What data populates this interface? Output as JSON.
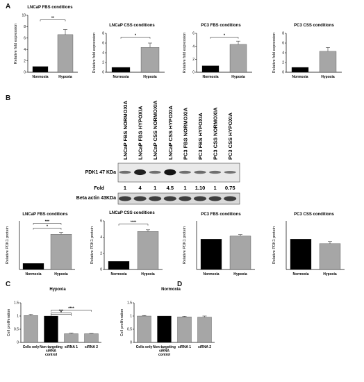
{
  "panels": {
    "a": "A",
    "b": "B",
    "c": "C",
    "d": "D"
  },
  "blot": {
    "lanes": [
      "LNCaP FBS NORMOXIA",
      "LNCaP FBS HYPOXIA",
      "LNCaP CSS NORMOXIA",
      "LNCaP CSS HYPOXIA",
      "PC3 FBS NORMOXIA",
      "PC3 FBS HYPOXIA",
      "PC3 CSS NORMOXIA",
      "PC3 CSS HYPOXIA"
    ],
    "pdk1_label": "PDK1 47 KDa",
    "fold_label": "Fold",
    "fold_values": [
      "1",
      "4",
      "1",
      "4.5",
      "1",
      "1.10",
      "1",
      "0.75"
    ],
    "beta_label": "Beta actin 43KDa"
  },
  "chart_data": [
    {
      "id": "A1",
      "type": "bar",
      "title": "LNCaP FBS conditions",
      "ylabel": "Relative fold expression",
      "categories": [
        "Normoxia",
        "Hypoxia"
      ],
      "values": [
        1.0,
        6.6
      ],
      "errors": [
        0,
        0.9
      ],
      "ylim": [
        0,
        10
      ],
      "yticks": [
        0,
        2,
        4,
        6,
        8,
        10
      ],
      "colors": [
        "#000000",
        "#a6a6a6"
      ],
      "significance": [
        {
          "label": "**",
          "from": 0,
          "to": 1,
          "level": 9.2
        }
      ]
    },
    {
      "id": "A2",
      "type": "bar",
      "title": "LNCaP CSS conditions",
      "ylabel": "Relative fold expression",
      "categories": [
        "Normoxia",
        "Hypoxia"
      ],
      "values": [
        1.0,
        5.1
      ],
      "errors": [
        0,
        0.9
      ],
      "ylim": [
        0,
        8
      ],
      "yticks": [
        0,
        2,
        4,
        6,
        8
      ],
      "colors": [
        "#000000",
        "#a6a6a6"
      ],
      "significance": [
        {
          "label": "*",
          "from": 0,
          "to": 1,
          "level": 7.2
        }
      ]
    },
    {
      "id": "A3",
      "type": "bar",
      "title": "PC3 FBS conditions",
      "ylabel": "Relative fold expression",
      "categories": [
        "Normoxia",
        "Hypoxia"
      ],
      "values": [
        1.0,
        4.3
      ],
      "errors": [
        0,
        0.5
      ],
      "ylim": [
        0,
        6
      ],
      "yticks": [
        0,
        2,
        4,
        6
      ],
      "colors": [
        "#000000",
        "#a6a6a6"
      ],
      "significance": [
        {
          "label": "*",
          "from": 0,
          "to": 1,
          "level": 5.4
        }
      ]
    },
    {
      "id": "A4",
      "type": "bar",
      "title": "PC3 CSS conditions",
      "ylabel": "Relative fold expression",
      "categories": [
        "Normoxia",
        "Hypoxia"
      ],
      "values": [
        1.0,
        4.3
      ],
      "errors": [
        0,
        0.8
      ],
      "ylim": [
        0,
        8
      ],
      "yticks": [
        0,
        2,
        4,
        6,
        8
      ],
      "colors": [
        "#000000",
        "#a6a6a6"
      ],
      "significance": []
    },
    {
      "id": "B1",
      "type": "bar",
      "title": "LNCaP FBS conditions",
      "ylabel": "Relative PDK1 protein",
      "categories": [
        "Normoxia",
        "Hypoxia"
      ],
      "values": [
        1.0,
        5.8
      ],
      "errors": [
        0,
        0.3
      ],
      "ylim": [
        0,
        8
      ],
      "yticks": [],
      "colors": [
        "#000000",
        "#a6a6a6"
      ],
      "significance": [
        {
          "label": "***",
          "from": 0,
          "to": 1,
          "level": 7.6
        },
        {
          "label": "*",
          "from": 0,
          "to": 1,
          "level": 6.8
        }
      ]
    },
    {
      "id": "B2",
      "type": "bar",
      "title": "LNCaP CSS conditions",
      "ylabel": "Relative PDK1 protein",
      "categories": [
        "Normoxia",
        "Hypoxia"
      ],
      "values": [
        1.0,
        4.7
      ],
      "errors": [
        0,
        0.2
      ],
      "ylim": [
        0,
        6
      ],
      "yticks": [
        0,
        2,
        4,
        6
      ],
      "colors": [
        "#000000",
        "#a6a6a6"
      ],
      "significance": [
        {
          "label": "****",
          "from": 0,
          "to": 1,
          "level": 5.6
        }
      ]
    },
    {
      "id": "B3",
      "type": "bar",
      "title": "PC3 FBS conditions",
      "ylabel": "Relative PDK1 protein",
      "categories": [
        "Normoxia",
        "Hypoxia"
      ],
      "values": [
        1.0,
        1.1
      ],
      "errors": [
        0,
        0.05
      ],
      "ylim": [
        0,
        1.6
      ],
      "yticks": [],
      "colors": [
        "#000000",
        "#a6a6a6"
      ],
      "significance": []
    },
    {
      "id": "B4",
      "type": "bar",
      "title": "PC3 CSS conditions",
      "ylabel": "Relative PDK1 protein",
      "categories": [
        "Normoxia",
        "Hypoxia"
      ],
      "values": [
        1.0,
        0.85
      ],
      "errors": [
        0,
        0.07
      ],
      "ylim": [
        0,
        1.6
      ],
      "yticks": [],
      "colors": [
        "#000000",
        "#a6a6a6"
      ],
      "significance": []
    },
    {
      "id": "C",
      "type": "bar",
      "title": "Hypoxia",
      "ylabel": "Cell proliferation",
      "categories": [
        "Cells only",
        "Non-targeting siRNA control",
        "siRNA 1",
        "siRNA 2"
      ],
      "values": [
        1.02,
        1.0,
        0.33,
        0.33
      ],
      "errors": [
        0.05,
        0,
        0.02,
        0.01
      ],
      "ylim": [
        0,
        1.5
      ],
      "yticks": [
        0,
        0.5,
        1.0,
        1.5
      ],
      "colors": [
        "#a6a6a6",
        "#000000",
        "#a6a6a6",
        "#a6a6a6"
      ],
      "significance": [
        {
          "label": "****",
          "from": 1,
          "to": 3,
          "level": 1.22
        },
        {
          "label": "***",
          "from": 1,
          "to": 2,
          "level": 1.12
        },
        {
          "label": "*",
          "from": 1,
          "to": 2,
          "level": 1.06
        }
      ]
    },
    {
      "id": "D",
      "type": "bar",
      "title": "Normoxia",
      "ylabel": "Cell proliferation",
      "categories": [
        "Cells only",
        "Non-targeting siRNA control",
        "siRNA 1",
        "siRNA 2"
      ],
      "values": [
        1.0,
        1.0,
        0.97,
        0.96
      ],
      "errors": [
        0.02,
        0,
        0.02,
        0.04
      ],
      "ylim": [
        0,
        1.5
      ],
      "yticks": [
        0,
        0.5,
        1.0,
        1.5
      ],
      "colors": [
        "#a6a6a6",
        "#000000",
        "#a6a6a6",
        "#a6a6a6"
      ],
      "significance": []
    }
  ]
}
